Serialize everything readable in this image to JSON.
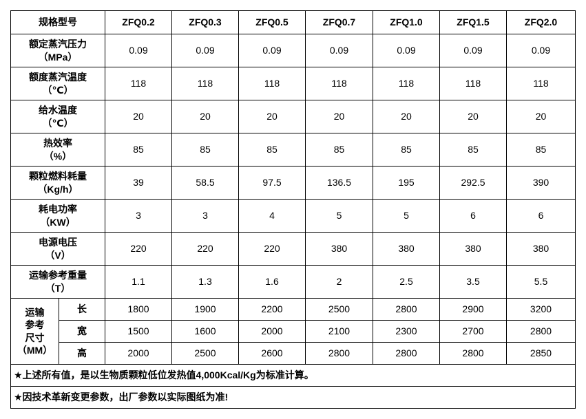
{
  "header": {
    "label": "规格型号",
    "models": [
      "ZFQ0.2",
      "ZFQ0.3",
      "ZFQ0.5",
      "ZFQ0.7",
      "ZFQ1.0",
      "ZFQ1.5",
      "ZFQ2.0"
    ]
  },
  "rows": [
    {
      "label": "额定蒸汽压力",
      "unit": "（MPa）",
      "values": [
        "0.09",
        "0.09",
        "0.09",
        "0.09",
        "0.09",
        "0.09",
        "0.09"
      ]
    },
    {
      "label": "额度蒸汽温度",
      "unit": "（℃）",
      "values": [
        "118",
        "118",
        "118",
        "118",
        "118",
        "118",
        "118"
      ]
    },
    {
      "label": "给水温度",
      "unit": "（℃）",
      "values": [
        "20",
        "20",
        "20",
        "20",
        "20",
        "20",
        "20"
      ]
    },
    {
      "label": "热效率",
      "unit": "（%）",
      "values": [
        "85",
        "85",
        "85",
        "85",
        "85",
        "85",
        "85"
      ]
    },
    {
      "label": "颗粒燃料耗量",
      "unit": "（Kg/h）",
      "values": [
        "39",
        "58.5",
        "97.5",
        "136.5",
        "195",
        "292.5",
        "390"
      ]
    },
    {
      "label": "耗电功率",
      "unit": "（KW）",
      "values": [
        "3",
        "3",
        "4",
        "5",
        "5",
        "6",
        "6"
      ]
    },
    {
      "label": "电源电压",
      "unit": "（V）",
      "values": [
        "220",
        "220",
        "220",
        "380",
        "380",
        "380",
        "380"
      ]
    },
    {
      "label": "运输参考重量",
      "unit": "（T）",
      "values": [
        "1.1",
        "1.3",
        "1.6",
        "2",
        "2.5",
        "3.5",
        "5.5"
      ]
    }
  ],
  "dimensions": {
    "group_label": [
      "运输",
      "参考",
      "尺寸",
      "（MM）"
    ],
    "rows": [
      {
        "key": "长",
        "values": [
          "1800",
          "1900",
          "2200",
          "2500",
          "2800",
          "2900",
          "3200"
        ]
      },
      {
        "key": "宽",
        "values": [
          "1500",
          "1600",
          "2000",
          "2100",
          "2300",
          "2700",
          "2800"
        ]
      },
      {
        "key": "高",
        "values": [
          "2000",
          "2500",
          "2600",
          "2800",
          "2800",
          "2800",
          "2850"
        ]
      }
    ]
  },
  "notes": [
    "★上述所有值，是以生物质颗粒低位发热值4,000Kcal/Kg为标准计算。",
    "★因技术革新变更参数，出厂参数以实际图纸为准!"
  ]
}
